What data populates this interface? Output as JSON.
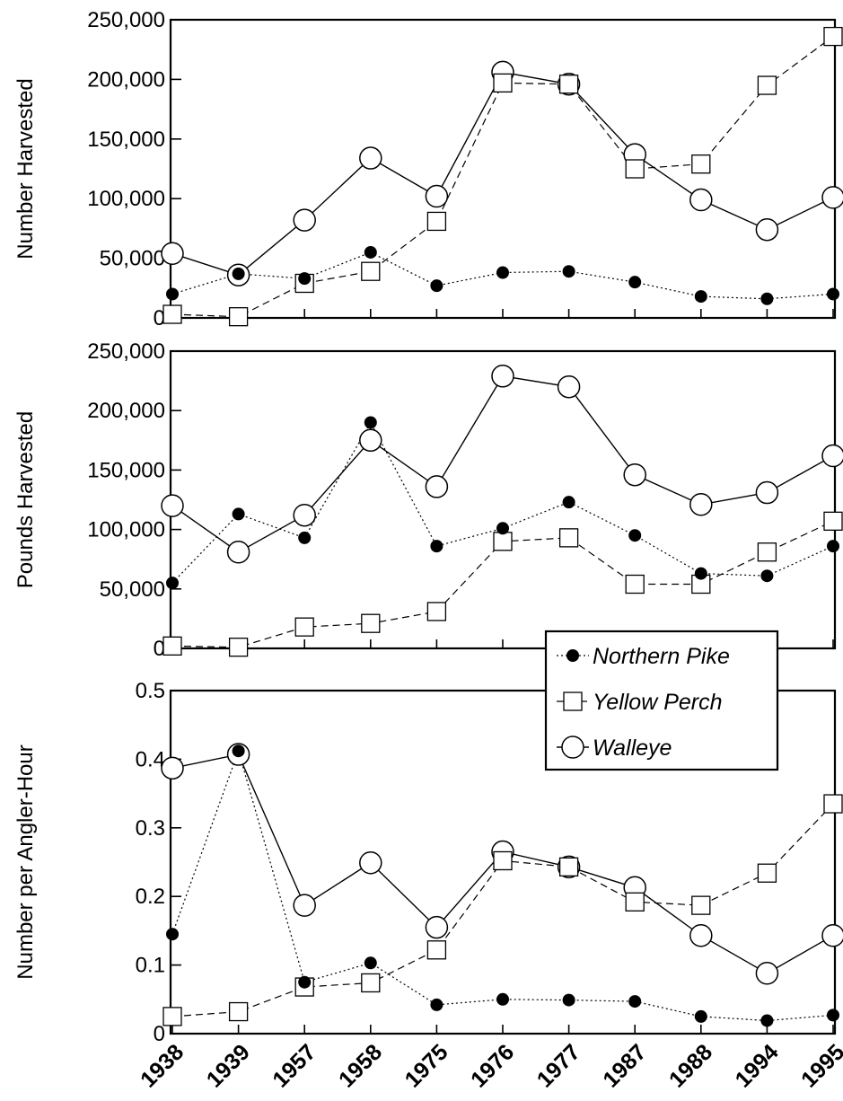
{
  "chart_data": [
    {
      "type": "line",
      "ylabel": "Number Harvested",
      "ylim": [
        0,
        250000
      ],
      "yticks": [
        0,
        50000,
        100000,
        150000,
        200000,
        250000
      ],
      "ytick_labels": [
        "0",
        "50,000",
        "100,000",
        "150,000",
        "200,000",
        "250,000"
      ],
      "categories": [
        "1938",
        "1939",
        "1957",
        "1958",
        "1975",
        "1976",
        "1977",
        "1987",
        "1988",
        "1994",
        "1995"
      ],
      "series": [
        {
          "name": "Northern Pike",
          "values": [
            20000,
            37000,
            33000,
            55000,
            27000,
            38000,
            39000,
            30000,
            18000,
            16000,
            20000
          ]
        },
        {
          "name": "Yellow Perch",
          "values": [
            3000,
            1000,
            29000,
            39000,
            81000,
            197000,
            196000,
            125000,
            129000,
            195000,
            236000
          ]
        },
        {
          "name": "Walleye",
          "values": [
            54000,
            36000,
            82000,
            134000,
            102000,
            206000,
            196000,
            137000,
            99000,
            74000,
            101000
          ]
        }
      ]
    },
    {
      "type": "line",
      "ylabel": "Pounds Harvested",
      "ylim": [
        0,
        250000
      ],
      "yticks": [
        0,
        50000,
        100000,
        150000,
        200000,
        250000
      ],
      "ytick_labels": [
        "0",
        "50,000",
        "100,000",
        "150,000",
        "200,000",
        "250,000"
      ],
      "categories": [
        "1938",
        "1939",
        "1957",
        "1958",
        "1975",
        "1976",
        "1977",
        "1987",
        "1988",
        "1994",
        "1995"
      ],
      "series": [
        {
          "name": "Northern Pike",
          "values": [
            55000,
            113000,
            93000,
            190000,
            86000,
            101000,
            123000,
            95000,
            63000,
            61000,
            86000
          ]
        },
        {
          "name": "Yellow Perch",
          "values": [
            2000,
            1000,
            18000,
            21000,
            31000,
            90000,
            93000,
            54000,
            54000,
            81000,
            107000
          ]
        },
        {
          "name": "Walleye",
          "values": [
            120000,
            81000,
            112000,
            175000,
            136000,
            229000,
            220000,
            146000,
            121000,
            131000,
            162000
          ]
        }
      ]
    },
    {
      "type": "line",
      "ylabel": "Number per Angler-Hour",
      "ylim": [
        0,
        0.5
      ],
      "yticks": [
        0,
        0.1,
        0.2,
        0.3,
        0.4,
        0.5
      ],
      "ytick_labels": [
        "0",
        "0.1",
        "0.2",
        "0.3",
        "0.4",
        "0.5"
      ],
      "categories": [
        "1938",
        "1939",
        "1957",
        "1958",
        "1975",
        "1976",
        "1977",
        "1987",
        "1988",
        "1994",
        "1995"
      ],
      "series": [
        {
          "name": "Northern Pike",
          "values": [
            0.145,
            0.412,
            0.075,
            0.103,
            0.042,
            0.05,
            0.049,
            0.047,
            0.025,
            0.019,
            0.027
          ]
        },
        {
          "name": "Yellow Perch",
          "values": [
            0.025,
            0.032,
            0.068,
            0.074,
            0.122,
            0.252,
            0.243,
            0.192,
            0.187,
            0.234,
            0.335
          ]
        },
        {
          "name": "Walleye",
          "values": [
            0.387,
            0.407,
            0.187,
            0.249,
            0.155,
            0.265,
            0.243,
            0.213,
            0.143,
            0.088,
            0.143
          ]
        }
      ]
    }
  ],
  "legend": {
    "placement": "right, between middle and bottom panels",
    "entries": [
      {
        "series": "Northern Pike",
        "marker": "filled-circle",
        "line": "dotted"
      },
      {
        "series": "Yellow Perch",
        "marker": "open-square",
        "line": "dashed"
      },
      {
        "series": "Walleye",
        "marker": "open-circle",
        "line": "solid"
      }
    ]
  },
  "colors": {
    "ink": "#000000",
    "background": "#ffffff"
  }
}
